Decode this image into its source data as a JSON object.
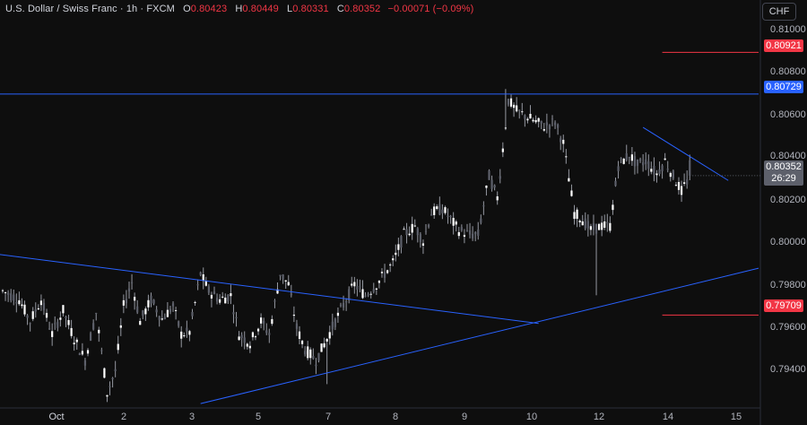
{
  "header": {
    "title": "U.S. Dollar / Swiss Franc · 1h · FXCM",
    "open_label": "O",
    "open": "0.80423",
    "high_label": "H",
    "high": "0.80449",
    "low_label": "L",
    "low": "0.80331",
    "close_label": "C",
    "close": "0.80352",
    "change": "−0.00071 (−0.09%)"
  },
  "currency_button": "CHF",
  "price_axis": {
    "ticks": [
      "0.81000",
      "0.80800",
      "0.80600",
      "0.80400",
      "0.80200",
      "0.80000",
      "0.79800",
      "0.79600",
      "0.79400"
    ]
  },
  "levels": {
    "upper_red": "0.80921",
    "blue_resistance": "0.80729",
    "lower_red": "0.79709"
  },
  "last_price": {
    "price": "0.80352",
    "countdown": "26:29"
  },
  "time_axis": {
    "labels": [
      "Oct",
      "2",
      "3",
      "5",
      "7",
      "8",
      "9",
      "10",
      "12",
      "14",
      "15"
    ]
  },
  "colors": {
    "background": "#0e0e0e",
    "candle_body": "#ffffff",
    "candle_wick": "#9598a1",
    "trendline": "#2962ff",
    "red_level": "#f23645",
    "last_price_badge": "#5d606b"
  },
  "chart_data": {
    "type": "candlestick",
    "symbol": "U.S. Dollar / Swiss Franc",
    "interval": "1h",
    "ylim": [
      0.7928,
      0.8108
    ],
    "price_path": [
      [
        0,
        0.7982
      ],
      [
        6,
        0.7978
      ],
      [
        10,
        0.7968
      ],
      [
        14,
        0.7978
      ],
      [
        18,
        0.7962
      ],
      [
        22,
        0.7973
      ],
      [
        26,
        0.796
      ],
      [
        30,
        0.795
      ],
      [
        34,
        0.7972
      ],
      [
        38,
        0.7935
      ],
      [
        41,
        0.7945
      ],
      [
        44,
        0.7975
      ],
      [
        47,
        0.7986
      ],
      [
        50,
        0.7968
      ],
      [
        54,
        0.7978
      ],
      [
        58,
        0.7969
      ],
      [
        62,
        0.7975
      ],
      [
        65,
        0.7962
      ],
      [
        68,
        0.7963
      ],
      [
        72,
        0.799
      ],
      [
        75,
        0.7982
      ],
      [
        79,
        0.7978
      ],
      [
        83,
        0.798
      ],
      [
        86,
        0.7962
      ],
      [
        90,
        0.7958
      ],
      [
        94,
        0.7968
      ],
      [
        97,
        0.7962
      ],
      [
        101,
        0.799
      ],
      [
        104,
        0.7985
      ],
      [
        107,
        0.7965
      ],
      [
        110,
        0.7955
      ],
      [
        114,
        0.795
      ],
      [
        118,
        0.796
      ],
      [
        121,
        0.7968
      ],
      [
        125,
        0.7978
      ],
      [
        128,
        0.7985
      ],
      [
        132,
        0.798
      ],
      [
        136,
        0.7985
      ],
      [
        139,
        0.799
      ],
      [
        142,
        0.7995
      ],
      [
        146,
        0.8008
      ],
      [
        150,
        0.8012
      ],
      [
        153,
        0.8005
      ],
      [
        156,
        0.8018
      ],
      [
        160,
        0.802
      ],
      [
        163,
        0.8015
      ],
      [
        166,
        0.801
      ],
      [
        170,
        0.8008
      ],
      [
        173,
        0.8008
      ],
      [
        177,
        0.8035
      ],
      [
        180,
        0.8025
      ],
      [
        184,
        0.807
      ],
      [
        187,
        0.8065
      ],
      [
        190,
        0.8063
      ],
      [
        194,
        0.806
      ],
      [
        197,
        0.8058
      ],
      [
        201,
        0.806
      ],
      [
        204,
        0.805
      ],
      [
        208,
        0.8018
      ],
      [
        211,
        0.8015
      ],
      [
        214,
        0.801
      ],
      [
        218,
        0.8012
      ],
      [
        221,
        0.8012
      ],
      [
        224,
        0.804
      ],
      [
        228,
        0.8045
      ],
      [
        231,
        0.804
      ],
      [
        234,
        0.8042
      ],
      [
        238,
        0.8036
      ],
      [
        241,
        0.8042
      ],
      [
        244,
        0.8035
      ],
      [
        247,
        0.8028
      ],
      [
        250,
        0.8035
      ]
    ],
    "trendlines": [
      {
        "name": "resistance",
        "points": [
          [
            -2,
            0.80729
          ],
          [
            276,
            0.80729
          ]
        ]
      },
      {
        "name": "descending",
        "points": [
          [
            -2,
            0.7999
          ],
          [
            195,
            0.7967
          ]
        ]
      },
      {
        "name": "ascending",
        "points": [
          [
            72,
            0.793
          ],
          [
            276,
            0.79925
          ]
        ]
      },
      {
        "name": "short-descending",
        "points": [
          [
            233,
            0.80575
          ],
          [
            264,
            0.8033
          ]
        ]
      }
    ],
    "horizontal_levels": [
      {
        "price": 0.80921,
        "from_bar": 240
      },
      {
        "price": 0.79709,
        "from_bar": 240
      }
    ],
    "x_label_bars": {
      "Oct": 20,
      "2": 44,
      "3": 69,
      "5": 93,
      "7": 118,
      "8": 142,
      "9": 167,
      "10": 192,
      "12": 217,
      "14": 241,
      "15": 266
    }
  }
}
